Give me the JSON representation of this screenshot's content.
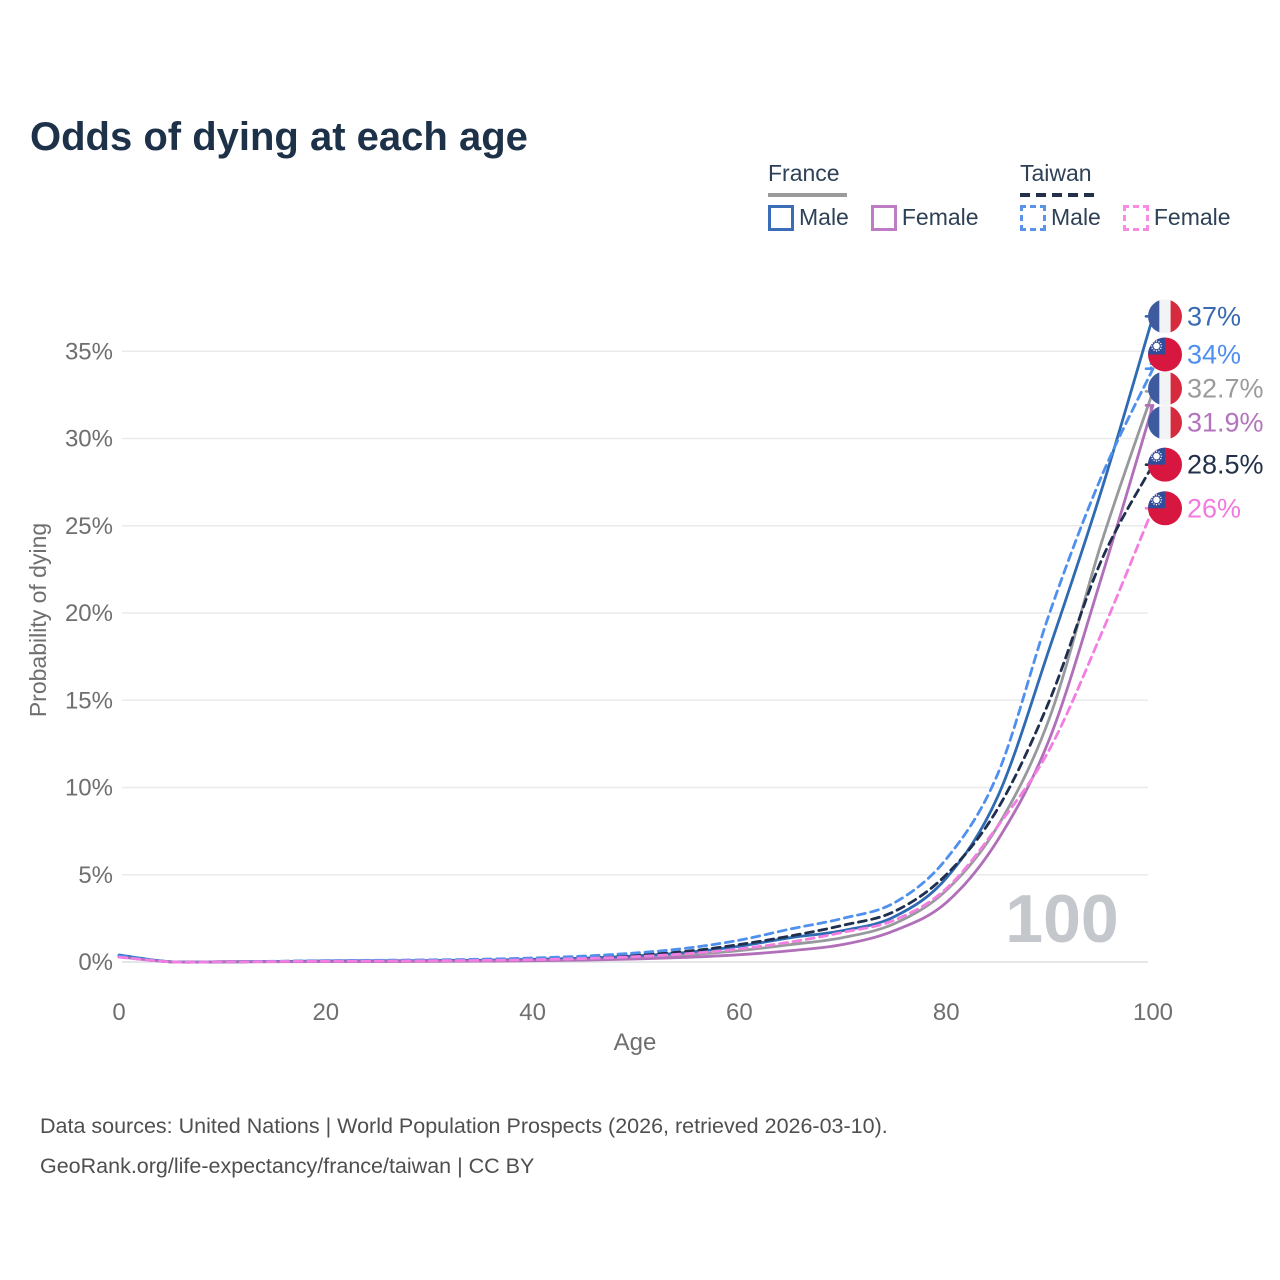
{
  "title": "Odds of dying at each age",
  "legend": {
    "groups": [
      {
        "id": "france",
        "label": "France",
        "line_style": "solid",
        "line_color": "#9b9b9b",
        "items": [
          {
            "label": "Male",
            "color": "#3a6cb7",
            "dashed": false
          },
          {
            "label": "Female",
            "color": "#bd7cc4",
            "dashed": false
          }
        ]
      },
      {
        "id": "taiwan",
        "label": "Taiwan",
        "line_style": "dashed",
        "line_color": "#22304a",
        "items": [
          {
            "label": "Male",
            "color": "#5b93ea",
            "dashed": true
          },
          {
            "label": "Female",
            "color": "#f98be5",
            "dashed": true
          }
        ]
      }
    ]
  },
  "footer": {
    "line1": "Data sources: United Nations | World Population Prospects (2026, retrieved 2026-03-10).",
    "line2": "GeoRank.org/life-expectancy/france/taiwan | CC BY"
  },
  "chart_data": {
    "type": "line",
    "title": "Odds of dying at each age",
    "xlabel": "Age",
    "ylabel": "Probability of dying",
    "x_ticks": [
      0,
      20,
      40,
      60,
      80,
      100
    ],
    "y_ticks": [
      0,
      5,
      10,
      15,
      20,
      25,
      30,
      35
    ],
    "y_tick_suffix": "%",
    "xlim": [
      0,
      100
    ],
    "ylim": [
      0,
      37.5
    ],
    "grid": "horizontal",
    "legend_position": "top-right",
    "watermark": "100",
    "ages": [
      0,
      5,
      10,
      15,
      20,
      25,
      30,
      35,
      40,
      45,
      50,
      55,
      60,
      65,
      70,
      75,
      80,
      85,
      90,
      95,
      100
    ],
    "series": [
      {
        "id": "france-male",
        "name": "France Male",
        "country": "France",
        "sex": "Male",
        "color": "#2f6bb3",
        "dashed": false,
        "flag": "france",
        "end_label": "37%",
        "end_label_color": "#3a6ab1",
        "end_value": 37,
        "values": [
          0.4,
          0.01,
          0.012,
          0.03,
          0.06,
          0.07,
          0.08,
          0.1,
          0.15,
          0.22,
          0.35,
          0.55,
          0.9,
          1.4,
          1.8,
          2.6,
          4.8,
          9.5,
          18.0,
          27.0,
          37.0
        ]
      },
      {
        "id": "taiwan-male",
        "name": "Taiwan Male",
        "country": "Taiwan",
        "sex": "Male",
        "color": "#4f8fee",
        "dashed": true,
        "flag": "taiwan",
        "end_label": "34%",
        "end_label_color": "#4f8fee",
        "end_value": 34,
        "values": [
          0.35,
          0.012,
          0.015,
          0.04,
          0.08,
          0.1,
          0.12,
          0.16,
          0.23,
          0.34,
          0.52,
          0.8,
          1.25,
          1.9,
          2.5,
          3.4,
          5.9,
          10.8,
          20.0,
          27.8,
          34.0
        ]
      },
      {
        "id": "france-both",
        "name": "France (both sexes)",
        "country": "France",
        "sex": "Both",
        "color": "#97999d",
        "dashed": false,
        "flag": "france",
        "end_label": "32.7%",
        "end_label_color": "#9b9b9b",
        "end_value": 32.7,
        "values": [
          0.35,
          0.01,
          0.011,
          0.022,
          0.04,
          0.05,
          0.06,
          0.075,
          0.11,
          0.17,
          0.26,
          0.41,
          0.65,
          1.0,
          1.4,
          2.2,
          4.1,
          7.8,
          14.0,
          24.0,
          32.7
        ]
      },
      {
        "id": "france-female",
        "name": "France Female",
        "country": "France",
        "sex": "Female",
        "color": "#b06fb8",
        "dashed": false,
        "flag": "france",
        "end_label": "31.9%",
        "end_label_color": "#b474bd",
        "end_value": 31.9,
        "values": [
          0.3,
          0.008,
          0.01,
          0.015,
          0.02,
          0.025,
          0.035,
          0.05,
          0.07,
          0.11,
          0.17,
          0.27,
          0.42,
          0.65,
          1.0,
          1.8,
          3.4,
          7.0,
          12.8,
          22.0,
          31.9
        ]
      },
      {
        "id": "taiwan-both",
        "name": "Taiwan (both sexes)",
        "country": "Taiwan",
        "sex": "Both",
        "color": "#1f2f4d",
        "dashed": true,
        "flag": "taiwan",
        "end_label": "28.5%",
        "end_label_color": "#22304a",
        "end_value": 28.5,
        "values": [
          0.3,
          0.01,
          0.013,
          0.03,
          0.06,
          0.075,
          0.09,
          0.12,
          0.17,
          0.26,
          0.4,
          0.62,
          1.0,
          1.5,
          2.1,
          2.9,
          5.0,
          8.8,
          15.0,
          23.0,
          28.5
        ]
      },
      {
        "id": "taiwan-female",
        "name": "Taiwan Female",
        "country": "Taiwan",
        "sex": "Female",
        "color": "#f27ee2",
        "dashed": true,
        "flag": "taiwan",
        "end_label": "26%",
        "end_label_color": "#f07ae0",
        "end_value": 26,
        "values": [
          0.28,
          0.008,
          0.01,
          0.025,
          0.045,
          0.055,
          0.07,
          0.09,
          0.13,
          0.2,
          0.31,
          0.48,
          0.75,
          1.15,
          1.7,
          2.4,
          4.2,
          7.8,
          12.2,
          18.8,
          26.0
        ]
      }
    ]
  }
}
